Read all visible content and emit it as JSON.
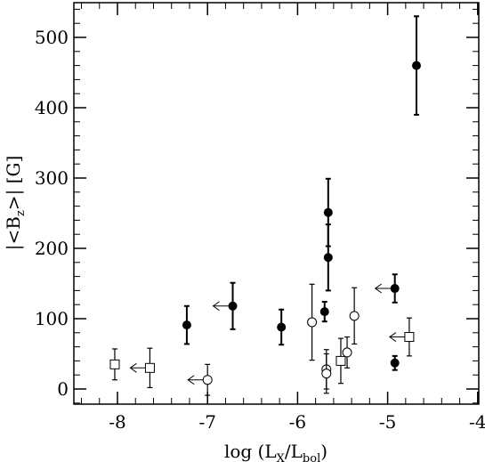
{
  "chart_data": {
    "type": "scatter",
    "title": "",
    "xlabel": {
      "main": "log (L",
      "sub1": "X",
      "mid": "/L",
      "sub2": "bol",
      "end": ")"
    },
    "ylabel": {
      "main": "|<B",
      "sub": "z",
      "end": ">| [G]"
    },
    "xlim": [
      -8.5,
      -4.0
    ],
    "ylim": [
      -20,
      550
    ],
    "xticks": [
      {
        "value": -8,
        "label": "-8"
      },
      {
        "value": -7,
        "label": "-7"
      },
      {
        "value": -6,
        "label": "-6"
      },
      {
        "value": -5,
        "label": "-5"
      },
      {
        "value": -4,
        "label": "-4"
      }
    ],
    "yticks": [
      {
        "value": 0,
        "label": "0"
      },
      {
        "value": 100,
        "label": "100"
      },
      {
        "value": 200,
        "label": "200"
      },
      {
        "value": 300,
        "label": "300"
      },
      {
        "value": 400,
        "label": "400"
      },
      {
        "value": 500,
        "label": "500"
      }
    ],
    "grid": false,
    "series": [
      {
        "marker": "filled-circle",
        "points": [
          {
            "x": -7.23,
            "y": 91,
            "err": 27,
            "upper_limit": false
          },
          {
            "x": -6.72,
            "y": 118,
            "err": 33,
            "upper_limit": true
          },
          {
            "x": -6.18,
            "y": 88,
            "err": 25,
            "upper_limit": false
          },
          {
            "x": -5.7,
            "y": 110,
            "err": 14,
            "upper_limit": false
          },
          {
            "x": -5.66,
            "y": 251,
            "err": 48,
            "upper_limit": false
          },
          {
            "x": -5.66,
            "y": 187,
            "err": 47,
            "upper_limit": false
          },
          {
            "x": -4.92,
            "y": 143,
            "err": 20,
            "upper_limit": true
          },
          {
            "x": -4.92,
            "y": 37,
            "err": 10,
            "upper_limit": false
          },
          {
            "x": -4.68,
            "y": 460,
            "err": 70,
            "upper_limit": false
          }
        ]
      },
      {
        "marker": "open-circle",
        "points": [
          {
            "x": -7.0,
            "y": 13,
            "err": 22,
            "upper_limit": true
          },
          {
            "x": -5.84,
            "y": 95,
            "err": 54,
            "upper_limit": false
          },
          {
            "x": -5.68,
            "y": 28,
            "err": 28,
            "upper_limit": false
          },
          {
            "x": -5.68,
            "y": 22,
            "err": 28,
            "upper_limit": false
          },
          {
            "x": -5.45,
            "y": 52,
            "err": 22,
            "upper_limit": false
          },
          {
            "x": -5.37,
            "y": 104,
            "err": 40,
            "upper_limit": false
          }
        ]
      },
      {
        "marker": "open-square",
        "points": [
          {
            "x": -8.03,
            "y": 35,
            "err": 22,
            "upper_limit": false
          },
          {
            "x": -7.64,
            "y": 30,
            "err": 28,
            "upper_limit": true
          },
          {
            "x": -5.52,
            "y": 40,
            "err": 32,
            "upper_limit": false
          },
          {
            "x": -4.76,
            "y": 74,
            "err": 27,
            "upper_limit": true
          }
        ]
      }
    ]
  }
}
